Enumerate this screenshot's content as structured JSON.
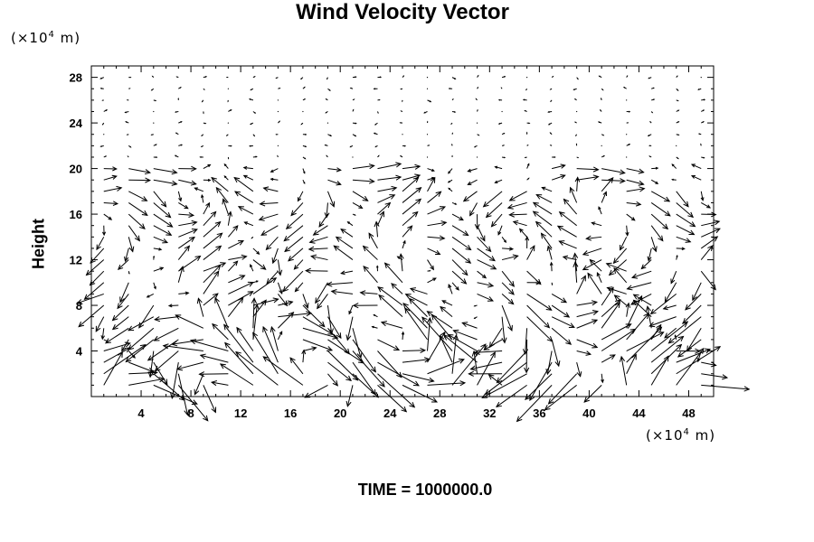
{
  "chart_data": {
    "type": "quiver",
    "title": "Wind Velocity Vector",
    "ylabel": "Height",
    "xlabel": "",
    "x_unit": {
      "prefix": "(×10",
      "exp": "4",
      "suffix": " m)"
    },
    "y_unit": {
      "prefix": "(×10",
      "exp": "4",
      "suffix": " m)"
    },
    "xlim": [
      0,
      50
    ],
    "ylim": [
      0,
      29
    ],
    "x_ticks": [
      4,
      8,
      12,
      16,
      20,
      24,
      28,
      32,
      36,
      40,
      44,
      48
    ],
    "y_ticks": [
      4,
      8,
      12,
      16,
      20,
      24,
      28
    ],
    "grid": {
      "dx": 2,
      "dy": 1,
      "x_start": 0,
      "y_start": 0
    },
    "annotation": "TIME = 1000000.0"
  }
}
